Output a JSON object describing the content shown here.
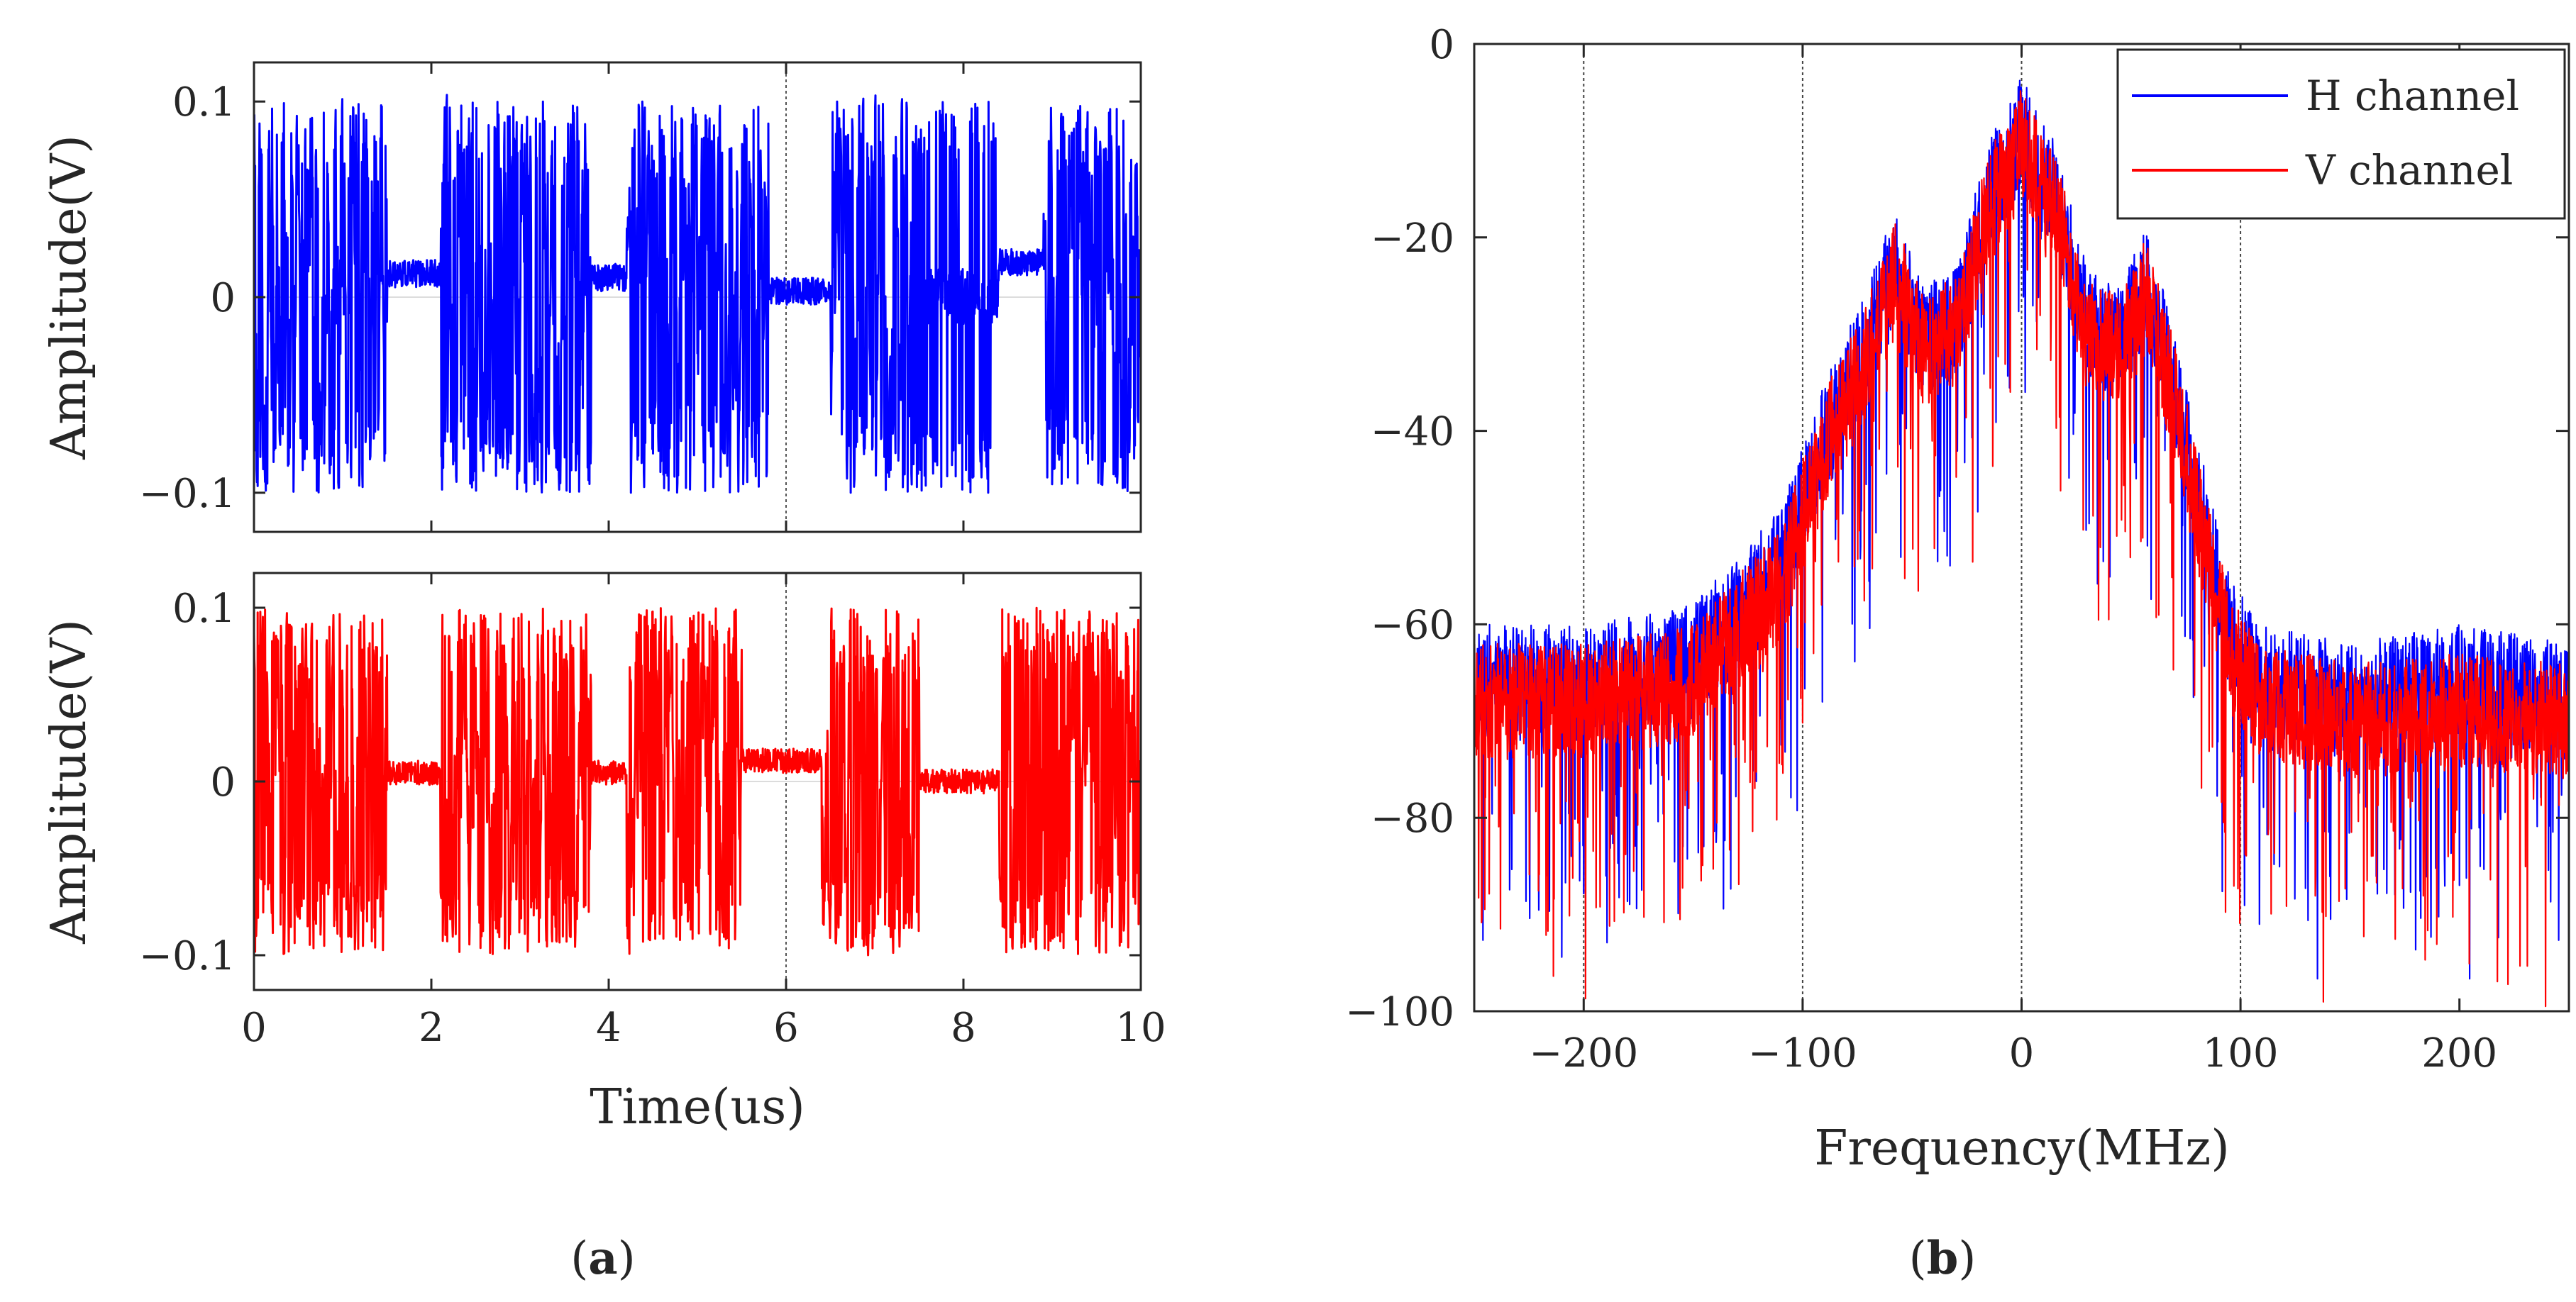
{
  "captions": {
    "a": "a",
    "b": "b"
  },
  "chart_data": [
    {
      "type": "line",
      "panel": "a-top",
      "title": "",
      "xlabel": "",
      "ylabel": "Amplitude(V)",
      "xlim": [
        0,
        10
      ],
      "ylim": [
        -0.12,
        0.12
      ],
      "yticks": [
        -0.1,
        0,
        0.1
      ],
      "ytick_labels": [
        "−0.1",
        "0",
        "0.1"
      ],
      "xticks": [
        0,
        2,
        4,
        6,
        8,
        10
      ],
      "grid": false,
      "series": [
        {
          "name": "H channel time signal",
          "color": "#0000ff",
          "amplitude_envelope": 0.1,
          "segments": [
            {
              "start_us": 0.0,
              "end_us": 1.5,
              "state": "active"
            },
            {
              "start_us": 1.5,
              "end_us": 2.1,
              "state": "quiet",
              "level": 0.012
            },
            {
              "start_us": 2.1,
              "end_us": 3.8,
              "state": "active"
            },
            {
              "start_us": 3.8,
              "end_us": 4.2,
              "state": "quiet",
              "level": 0.01
            },
            {
              "start_us": 4.2,
              "end_us": 5.8,
              "state": "active"
            },
            {
              "start_us": 5.8,
              "end_us": 6.5,
              "state": "quiet",
              "level": 0.003
            },
            {
              "start_us": 6.5,
              "end_us": 7.5,
              "state": "active"
            },
            {
              "start_us": 7.5,
              "end_us": 8.4,
              "state": "active_sparse"
            },
            {
              "start_us": 8.4,
              "end_us": 8.9,
              "state": "quiet",
              "level": 0.018
            },
            {
              "start_us": 8.9,
              "end_us": 10.0,
              "state": "active"
            }
          ]
        }
      ]
    },
    {
      "type": "line",
      "panel": "a-bottom",
      "title": "",
      "xlabel": "Time(us)",
      "ylabel": "Amplitude(V)",
      "xlim": [
        0,
        10
      ],
      "ylim": [
        -0.12,
        0.12
      ],
      "yticks": [
        -0.1,
        0,
        0.1
      ],
      "ytick_labels": [
        "−0.1",
        "0",
        "0.1"
      ],
      "xticks": [
        0,
        2,
        4,
        6,
        8,
        10
      ],
      "xtick_labels": [
        "0",
        "2",
        "4",
        "6",
        "8",
        "10"
      ],
      "grid": false,
      "series": [
        {
          "name": "V channel time signal",
          "color": "#ff0000",
          "amplitude_envelope": 0.1,
          "segments": [
            {
              "start_us": 0.0,
              "end_us": 1.5,
              "state": "active"
            },
            {
              "start_us": 1.5,
              "end_us": 2.1,
              "state": "quiet",
              "level": 0.005
            },
            {
              "start_us": 2.1,
              "end_us": 3.8,
              "state": "active"
            },
            {
              "start_us": 3.8,
              "end_us": 4.2,
              "state": "quiet",
              "level": 0.005
            },
            {
              "start_us": 4.2,
              "end_us": 5.5,
              "state": "active"
            },
            {
              "start_us": 5.5,
              "end_us": 6.4,
              "state": "quiet",
              "level": 0.012
            },
            {
              "start_us": 6.4,
              "end_us": 7.5,
              "state": "active"
            },
            {
              "start_us": 7.5,
              "end_us": 8.4,
              "state": "quiet",
              "level": 0.0
            },
            {
              "start_us": 8.4,
              "end_us": 10.0,
              "state": "active"
            }
          ]
        }
      ]
    },
    {
      "type": "line",
      "panel": "b",
      "title": "",
      "xlabel": "Frequency(MHz)",
      "ylabel": "",
      "xlim": [
        -250,
        250
      ],
      "ylim": [
        -100,
        0
      ],
      "xticks": [
        -200,
        -100,
        0,
        100,
        200
      ],
      "xtick_labels": [
        "−200",
        "−100",
        "0",
        "100",
        "200"
      ],
      "yticks": [
        -100,
        -80,
        -60,
        -40,
        -20,
        0
      ],
      "ytick_labels": [
        "−100",
        "−80",
        "−60",
        "−40",
        "−20",
        "0"
      ],
      "grid": "vertical lines at -200, -100, 0, 100",
      "legend": {
        "placement": "top-right",
        "entries": [
          "H channel",
          "V channel"
        ]
      },
      "series": [
        {
          "name": "H channel",
          "color": "#0000ff",
          "envelope_mhz": [
            -250,
            -200,
            -150,
            -110,
            -90,
            -70,
            -58,
            -45,
            -30,
            -15,
            -5,
            0,
            5,
            15,
            30,
            45,
            57,
            70,
            80,
            95,
            110,
            150,
            200,
            250
          ],
          "envelope_db": [
            -60,
            -60,
            -58,
            -48,
            -35,
            -25,
            -17,
            -25,
            -23,
            -10,
            -6,
            -3,
            -6,
            -10,
            -23,
            -25,
            -19,
            -30,
            -40,
            -55,
            -60,
            -62,
            -60,
            -62
          ]
        },
        {
          "name": "V channel",
          "color": "#ff0000",
          "envelope_mhz": [
            -250,
            -200,
            -150,
            -110,
            -90,
            -70,
            -58,
            -45,
            -30,
            -15,
            -5,
            0,
            5,
            15,
            30,
            45,
            57,
            70,
            80,
            95,
            110,
            150,
            200,
            250
          ],
          "envelope_db": [
            -62,
            -62,
            -60,
            -50,
            -36,
            -26,
            -18,
            -26,
            -24,
            -11,
            -7,
            -4,
            -7,
            -11,
            -24,
            -26,
            -20,
            -31,
            -42,
            -57,
            -62,
            -64,
            -63,
            -64
          ]
        }
      ]
    }
  ]
}
